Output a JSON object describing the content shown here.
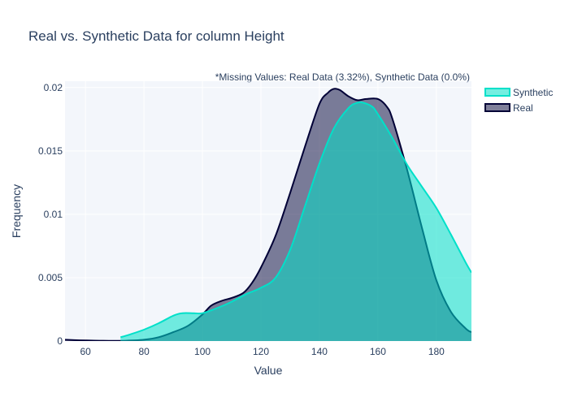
{
  "chart_data": {
    "type": "area",
    "title": "Real vs. Synthetic Data for column Height",
    "annotation": "*Missing Values: Real Data (3.32%), Synthetic Data (0.0%)",
    "xlabel": "Value",
    "ylabel": "Frequency",
    "xlim": [
      53,
      192
    ],
    "ylim": [
      0,
      0.0205
    ],
    "x_ticks": [
      60,
      80,
      100,
      120,
      140,
      160,
      180
    ],
    "y_ticks": [
      0,
      0.005,
      0.01,
      0.015,
      0.02
    ],
    "y_tick_labels": [
      "0",
      "0.005",
      "0.01",
      "0.015",
      "0.02"
    ],
    "grid": true,
    "legend_position": "top-right",
    "series": [
      {
        "name": "Synthetic",
        "color": "#01e0c9",
        "fill": "rgba(1,224,201,0.55)",
        "x": [
          72,
          75,
          80,
          85,
          90,
          93,
          97,
          100,
          105,
          110,
          115,
          120,
          125,
          130,
          135,
          140,
          145,
          150,
          153,
          155,
          158,
          160,
          165,
          170,
          175,
          180,
          185,
          190,
          192
        ],
        "y": [
          0.0003,
          0.0005,
          0.0009,
          0.0014,
          0.002,
          0.0022,
          0.0022,
          0.0022,
          0.0026,
          0.0031,
          0.0037,
          0.0042,
          0.005,
          0.0072,
          0.0106,
          0.014,
          0.0168,
          0.0184,
          0.0188,
          0.0188,
          0.0185,
          0.0179,
          0.016,
          0.0139,
          0.0122,
          0.0105,
          0.0084,
          0.0062,
          0.0054
        ]
      },
      {
        "name": "Real",
        "color": "#000036",
        "fill": "rgba(0,0,54,0.5)",
        "x": [
          53,
          58,
          63,
          68,
          72,
          76,
          80,
          85,
          90,
          95,
          100,
          103,
          107,
          110,
          114,
          117,
          120,
          125,
          130,
          135,
          140,
          143,
          145,
          147,
          150,
          153,
          156,
          160,
          163,
          165,
          170,
          175,
          180,
          185,
          190,
          192
        ],
        "y": [
          0.0001,
          6e-05,
          3e-05,
          2e-05,
          2e-05,
          5e-05,
          0.0001,
          0.0003,
          0.0007,
          0.0012,
          0.0021,
          0.0028,
          0.0032,
          0.0034,
          0.0038,
          0.0046,
          0.0058,
          0.0083,
          0.0117,
          0.0153,
          0.0187,
          0.0196,
          0.0199,
          0.0198,
          0.0193,
          0.019,
          0.0191,
          0.0191,
          0.0185,
          0.0175,
          0.0135,
          0.009,
          0.0048,
          0.0023,
          0.001,
          0.0007
        ]
      }
    ]
  }
}
